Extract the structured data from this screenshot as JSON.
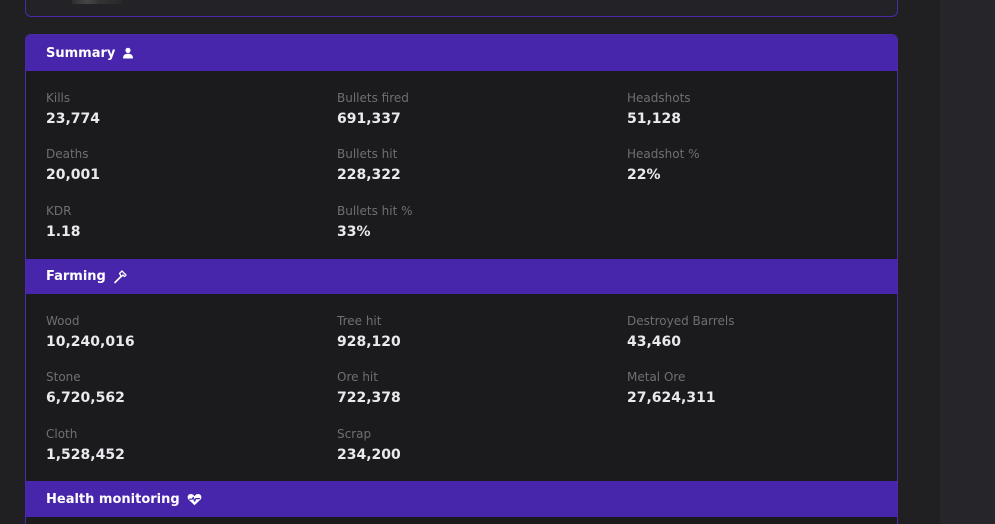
{
  "summary": {
    "title": "Summary",
    "icon": "user-icon",
    "stats": [
      {
        "label": "Kills",
        "value": "23,774"
      },
      {
        "label": "Bullets fired",
        "value": "691,337"
      },
      {
        "label": "Headshots",
        "value": "51,128"
      },
      {
        "label": "Deaths",
        "value": "20,001"
      },
      {
        "label": "Bullets hit",
        "value": "228,322"
      },
      {
        "label": "Headshot  %",
        "value": "22%"
      },
      {
        "label": "KDR",
        "value": "1.18"
      },
      {
        "label": "Bullets hit %",
        "value": "33%"
      }
    ]
  },
  "farming": {
    "title": "Farming",
    "icon": "hammer-icon",
    "stats": [
      {
        "label": "Wood",
        "value": "10,240,016"
      },
      {
        "label": "Tree hit",
        "value": "928,120"
      },
      {
        "label": "Destroyed Barrels",
        "value": "43,460"
      },
      {
        "label": "Stone",
        "value": "6,720,562"
      },
      {
        "label": "Ore hit",
        "value": "722,378"
      },
      {
        "label": "Metal Ore",
        "value": "27,624,311"
      },
      {
        "label": "Cloth",
        "value": "1,528,452"
      },
      {
        "label": "Scrap",
        "value": "234,200"
      }
    ]
  },
  "health": {
    "title": "Health monitoring",
    "icon": "heart-pulse-icon"
  },
  "colors": {
    "accent": "#4726ab",
    "border": "#4b2aa8",
    "background": "#1b1b1e",
    "label": "#6e6e74",
    "value": "#eaeaee"
  }
}
